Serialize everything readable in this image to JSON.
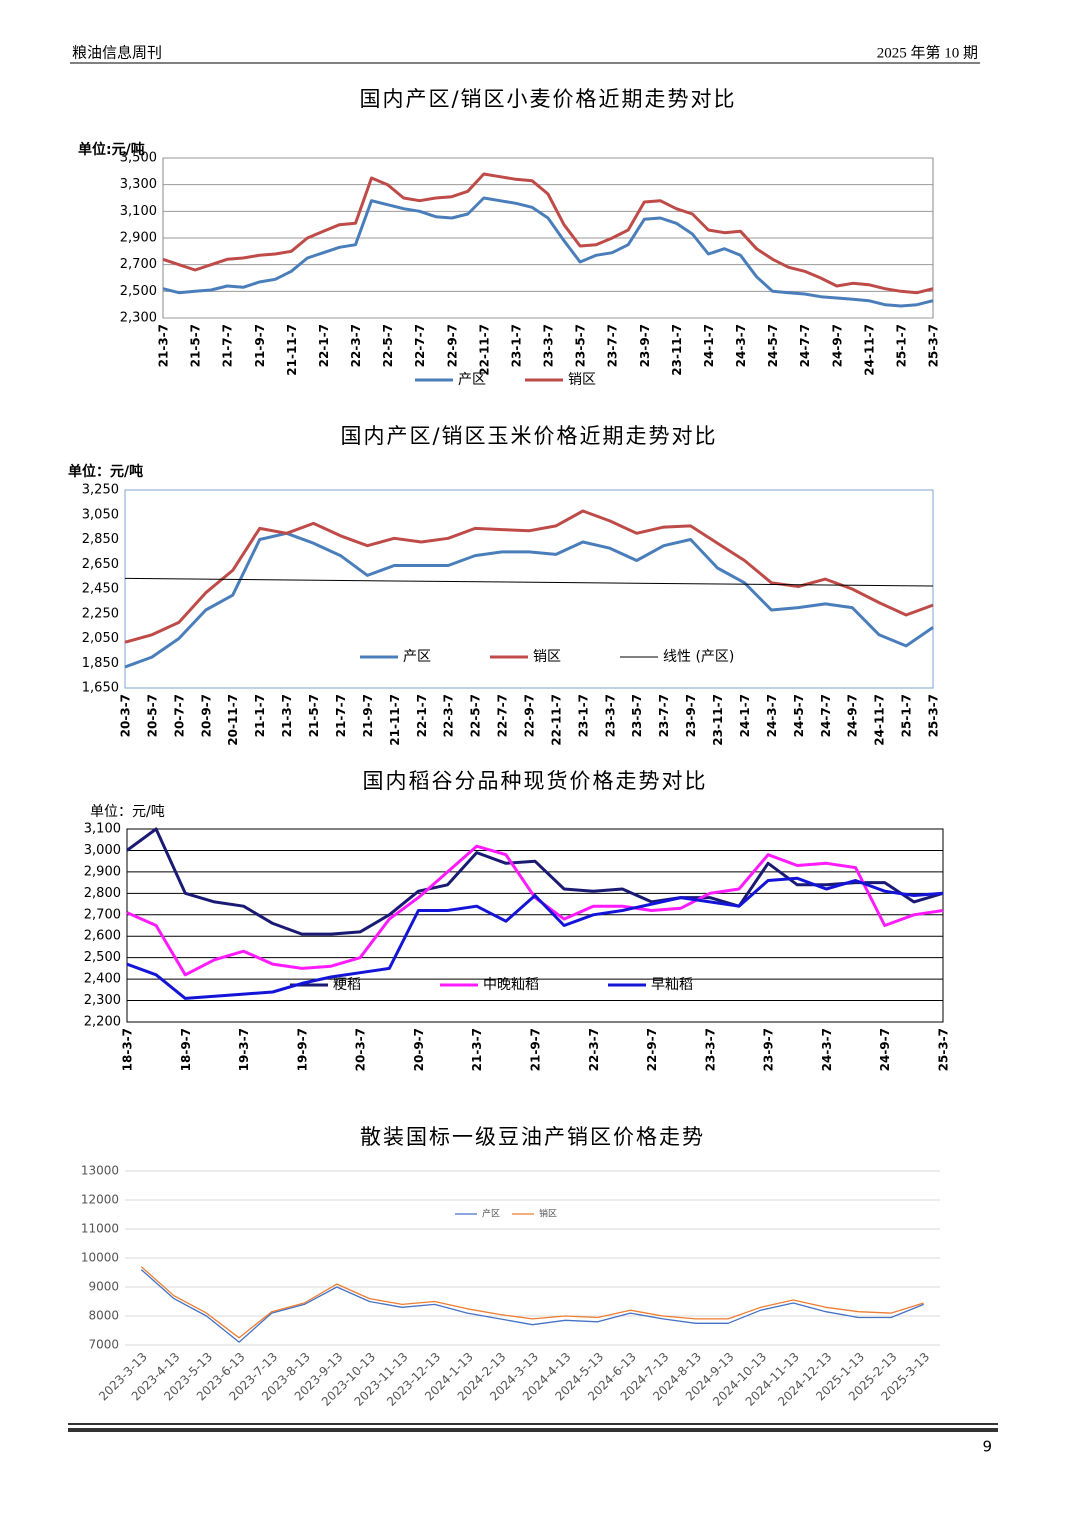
{
  "header": {
    "left": "粮油信息周刊",
    "right": "2025 年第 10 期"
  },
  "page_number": "9",
  "chart_data": [
    {
      "type": "line",
      "title": "国内产区/销区小麦价格近期走势对比",
      "unit": "单位:元/吨",
      "categories": [
        "21-3-7",
        null,
        "21-5-7",
        null,
        "21-7-7",
        null,
        "21-9-7",
        null,
        "21-11-7",
        null,
        "22-1-7",
        null,
        "22-3-7",
        null,
        "22-5-7",
        null,
        "22-7-7",
        null,
        "22-9-7",
        null,
        "22-11-7",
        null,
        "23-1-7",
        null,
        "23-3-7",
        null,
        "23-5-7",
        null,
        "23-7-7",
        null,
        "23-9-7",
        null,
        "23-11-7",
        null,
        "24-1-7",
        null,
        "24-3-7",
        null,
        "24-5-7",
        null,
        "24-7-7",
        null,
        "24-9-7",
        null,
        "24-11-7",
        null,
        "25-1-7",
        null,
        "25-3-7"
      ],
      "series": [
        {
          "name": "产区",
          "color": "#4a7ebb",
          "values": [
            2520,
            2490,
            2500,
            2510,
            2540,
            2530,
            2570,
            2590,
            2650,
            2750,
            2790,
            2830,
            2850,
            3180,
            3150,
            3120,
            3100,
            3060,
            3050,
            3080,
            3200,
            3180,
            3160,
            3130,
            3050,
            2880,
            2720,
            2770,
            2790,
            2850,
            3040,
            3050,
            3010,
            2930,
            2780,
            2820,
            2770,
            2610,
            2500,
            2490,
            2480,
            2460,
            2450,
            2440,
            2430,
            2400,
            2390,
            2400,
            2430
          ]
        },
        {
          "name": "销区",
          "color": "#be4b48",
          "values": [
            2740,
            2700,
            2660,
            2700,
            2740,
            2750,
            2770,
            2780,
            2800,
            2900,
            2950,
            3000,
            3010,
            3350,
            3300,
            3200,
            3180,
            3200,
            3210,
            3250,
            3380,
            3360,
            3340,
            3330,
            3230,
            3000,
            2840,
            2850,
            2900,
            2960,
            3170,
            3180,
            3120,
            3080,
            2960,
            2940,
            2950,
            2820,
            2740,
            2680,
            2650,
            2600,
            2540,
            2560,
            2550,
            2520,
            2500,
            2490,
            2520
          ]
        }
      ],
      "ylim": [
        2300,
        3500
      ],
      "yticks": [
        {
          "value": 2300,
          "label": "2,300"
        },
        {
          "value": 2500,
          "label": "2,500"
        },
        {
          "value": 2700,
          "label": "2,700"
        },
        {
          "value": 2900,
          "label": "2,900"
        },
        {
          "value": 3100,
          "label": "3,100"
        },
        {
          "value": 3300,
          "label": "3,300"
        },
        {
          "value": 3500,
          "label": "3,500"
        }
      ],
      "grid": true,
      "legend": "bottom"
    },
    {
      "type": "line",
      "title": "国内产区/销区玉米价格近期走势对比",
      "unit": "单位：元/吨",
      "categories": [
        "20-3-7",
        "20-5-7",
        "20-7-7",
        "20-9-7",
        "20-11-7",
        "21-1-7",
        "21-3-7",
        "21-5-7",
        "21-7-7",
        "21-9-7",
        "21-11-7",
        "22-1-7",
        "22-3-7",
        "22-5-7",
        "22-7-7",
        "22-9-7",
        "22-11-7",
        "23-1-7",
        "23-3-7",
        "23-5-7",
        "23-7-7",
        "23-9-7",
        "23-11-7",
        "24-1-7",
        "24-3-7",
        "24-5-7",
        "24-7-7",
        "24-9-7",
        "24-11-7",
        "25-1-7",
        "25-3-7"
      ],
      "series": [
        {
          "name": "产区",
          "color": "#4a7ebb",
          "values": [
            1820,
            1900,
            2050,
            2280,
            2400,
            2850,
            2900,
            2820,
            2720,
            2560,
            2640,
            2640,
            2640,
            2720,
            2750,
            2750,
            2730,
            2830,
            2780,
            2680,
            2800,
            2850,
            2620,
            2500,
            2280,
            2300,
            2330,
            2300,
            2080,
            1990,
            2140
          ]
        },
        {
          "name": "销区",
          "color": "#be4b48",
          "values": [
            2020,
            2080,
            2180,
            2420,
            2600,
            2940,
            2900,
            2980,
            2880,
            2800,
            2860,
            2830,
            2860,
            2940,
            2930,
            2920,
            2960,
            3080,
            3000,
            2900,
            2950,
            2960,
            2820,
            2680,
            2500,
            2470,
            2530,
            2450,
            2340,
            2240,
            2320
          ]
        }
      ],
      "trendline_name": "线性 (产区)",
      "ylim": [
        1650,
        3250
      ],
      "yticks": [
        {
          "value": 1650,
          "label": "1,650"
        },
        {
          "value": 1850,
          "label": "1,850"
        },
        {
          "value": 2050,
          "label": "2,050"
        },
        {
          "value": 2250,
          "label": "2,250"
        },
        {
          "value": 2450,
          "label": "2,450"
        },
        {
          "value": 2650,
          "label": "2,650"
        },
        {
          "value": 2850,
          "label": "2,850"
        },
        {
          "value": 3050,
          "label": "3,050"
        },
        {
          "value": 3250,
          "label": "3,250"
        }
      ],
      "grid": false,
      "legend": "inside bottom"
    },
    {
      "type": "line",
      "title": "国内稻谷分品种现货价格走势对比",
      "unit": "单位：元/吨",
      "categories": [
        "18-3-7",
        null,
        "18-9-7",
        null,
        "19-3-7",
        null,
        "19-9-7",
        null,
        "20-3-7",
        null,
        "20-9-7",
        null,
        "21-3-7",
        null,
        "21-9-7",
        null,
        "22-3-7",
        null,
        "22-9-7",
        null,
        "23-3-7",
        null,
        "23-9-7",
        null,
        "24-3-7",
        null,
        "24-9-7",
        null,
        "25-3-7"
      ],
      "series": [
        {
          "name": "粳稻",
          "color": "#1a1a75",
          "values": [
            3000,
            3100,
            2800,
            2760,
            2740,
            2660,
            2610,
            2610,
            2620,
            2700,
            2810,
            2840,
            2990,
            2940,
            2950,
            2820,
            2810,
            2820,
            2760,
            2780,
            2780,
            2740,
            2940,
            2840,
            2840,
            2850,
            2850,
            2760,
            2800
          ]
        },
        {
          "name": "中晚籼稻",
          "color": "#ff1aff",
          "values": [
            2710,
            2650,
            2420,
            2490,
            2530,
            2470,
            2450,
            2460,
            2500,
            2680,
            2780,
            2900,
            3020,
            2980,
            2780,
            2680,
            2740,
            2740,
            2720,
            2730,
            2800,
            2820,
            2980,
            2930,
            2940,
            2920,
            2650,
            2700,
            2720
          ]
        },
        {
          "name": "早籼稻",
          "color": "#1414d8",
          "values": [
            2470,
            2420,
            2310,
            2320,
            2330,
            2340,
            2380,
            2410,
            2430,
            2450,
            2720,
            2720,
            2740,
            2670,
            2790,
            2650,
            2700,
            2720,
            2750,
            2780,
            2760,
            2740,
            2860,
            2870,
            2820,
            2860,
            2810,
            2790,
            2800
          ]
        }
      ],
      "ylim": [
        2200,
        3100
      ],
      "yticks": [
        {
          "value": 2200,
          "label": "2,200"
        },
        {
          "value": 2300,
          "label": "2,300"
        },
        {
          "value": 2400,
          "label": "2,400"
        },
        {
          "value": 2500,
          "label": "2,500"
        },
        {
          "value": 2600,
          "label": "2,600"
        },
        {
          "value": 2700,
          "label": "2,700"
        },
        {
          "value": 2800,
          "label": "2,800"
        },
        {
          "value": 2900,
          "label": "2,900"
        },
        {
          "value": 3000,
          "label": "3,000"
        },
        {
          "value": 3100,
          "label": "3,100"
        }
      ],
      "grid": true,
      "legend": "inside bottom"
    },
    {
      "type": "line",
      "title": "散装国标一级豆油产销区价格走势",
      "categories": [
        "2023-3-13",
        "2023-4-13",
        "2023-5-13",
        "2023-6-13",
        "2023-7-13",
        "2023-8-13",
        "2023-9-13",
        "2023-10-13",
        "2023-11-13",
        "2023-12-13",
        "2024-1-13",
        "2024-2-13",
        "2024-3-13",
        "2024-4-13",
        "2024-5-13",
        "2024-6-13",
        "2024-7-13",
        "2024-8-13",
        "2024-9-13",
        "2024-10-13",
        "2024-11-13",
        "2024-12-13",
        "2025-1-13",
        "2025-2-13",
        "2025-3-13"
      ],
      "series": [
        {
          "name": "产区",
          "color": "#4472c4",
          "values": [
            9600,
            8600,
            8000,
            7100,
            8100,
            8400,
            9000,
            8500,
            8300,
            8400,
            8100,
            7900,
            7700,
            7850,
            7800,
            8100,
            7900,
            7750,
            7750,
            8200,
            8450,
            8150,
            7950,
            7950,
            8400
          ]
        },
        {
          "name": "销区",
          "color": "#ed7d31",
          "values": [
            9700,
            8700,
            8100,
            7250,
            8150,
            8450,
            9100,
            8600,
            8400,
            8500,
            8250,
            8050,
            7900,
            8000,
            7950,
            8200,
            8000,
            7900,
            7900,
            8300,
            8550,
            8300,
            8150,
            8100,
            8450
          ]
        }
      ],
      "ylim": [
        7000,
        13000
      ],
      "yticks": [
        7000,
        8000,
        9000,
        10000,
        11000,
        12000,
        13000
      ],
      "grid": true,
      "legend": "inside top"
    }
  ]
}
